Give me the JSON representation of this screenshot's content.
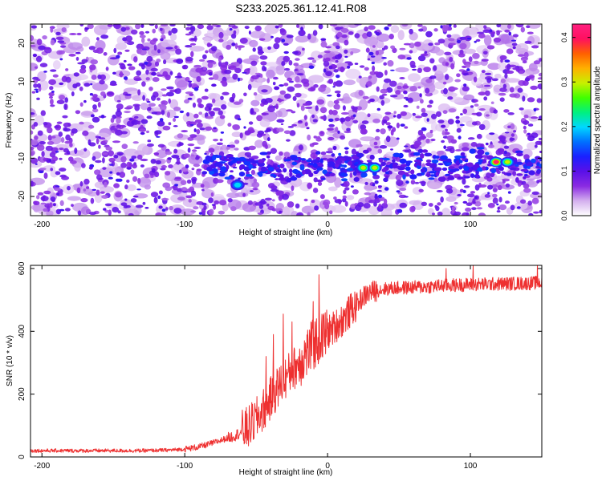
{
  "title": "S233.2025.361.12.41.R08",
  "chart_data": [
    {
      "type": "heatmap",
      "xlabel": "Height of straight line (km)",
      "ylabel": "Frequency (Hz)",
      "xlim": [
        -208,
        150
      ],
      "ylim": [
        -25,
        25
      ],
      "xticks": [
        -200,
        -100,
        0,
        100
      ],
      "yticks": [
        -20,
        -10,
        0,
        10,
        20
      ],
      "colorbar": {
        "label": "Normalized spectral amplitude",
        "range": [
          0,
          0.43
        ],
        "ticks": [
          0.0,
          0.1,
          0.2,
          0.3,
          0.4
        ],
        "tick_labels": [
          "0.0",
          "0.1",
          "0.2",
          "0.3",
          "0.4"
        ],
        "colors": [
          "#ffffff",
          "#d4b0ee",
          "#8a2be2",
          "#5a10e8",
          "#1a20ff",
          "#0070ff",
          "#00d8ff",
          "#00f080",
          "#40ff00",
          "#c8f000",
          "#ffb000",
          "#ff6000",
          "#ff1060",
          "#ff2080"
        ]
      },
      "band": {
        "description": "enhanced amplitude band near -12 Hz for heights above about -80 km",
        "frequency_hz": -12,
        "peaks": [
          {
            "x_km": -63,
            "y_hz": -17,
            "amp": 0.24
          },
          {
            "x_km": 25,
            "y_hz": -12.5,
            "amp": 0.33
          },
          {
            "x_km": 33,
            "y_hz": -12.5,
            "amp": 0.3
          },
          {
            "x_km": 118,
            "y_hz": -11,
            "amp": 0.42
          },
          {
            "x_km": 126,
            "y_hz": -11,
            "amp": 0.32
          }
        ]
      }
    },
    {
      "type": "line",
      "xlabel": "Height of straight line (km)",
      "ylabel": "SNR (10 * v/v)",
      "xlim": [
        -208,
        150
      ],
      "ylim": [
        0,
        610
      ],
      "xticks": [
        -200,
        -100,
        0,
        100
      ],
      "yticks": [
        0,
        200,
        400,
        600
      ],
      "color": "#ee3030",
      "series": [
        {
          "name": "SNR",
          "x": [
            -208,
            -190,
            -170,
            -150,
            -130,
            -110,
            -100,
            -90,
            -80,
            -70,
            -65,
            -60,
            -55,
            -50,
            -45,
            -40,
            -35,
            -30,
            -25,
            -20,
            -15,
            -10,
            -5,
            0,
            5,
            10,
            15,
            20,
            25,
            30,
            40,
            50,
            60,
            70,
            80,
            90,
            100,
            110,
            120,
            130,
            140,
            150
          ],
          "y": [
            20,
            20,
            20,
            20,
            20,
            22,
            25,
            32,
            45,
            60,
            68,
            80,
            95,
            120,
            150,
            185,
            220,
            250,
            275,
            300,
            330,
            355,
            380,
            395,
            415,
            435,
            460,
            485,
            510,
            525,
            535,
            538,
            540,
            542,
            545,
            547,
            549,
            550,
            551,
            552,
            553,
            555
          ]
        }
      ],
      "spikes": [
        {
          "x": -43,
          "y": 320
        },
        {
          "x": -38,
          "y": 390
        },
        {
          "x": -31,
          "y": 455
        },
        {
          "x": -25,
          "y": 430
        },
        {
          "x": -10,
          "y": 495
        },
        {
          "x": -6,
          "y": 580
        },
        {
          "x": 83,
          "y": 600
        },
        {
          "x": 102,
          "y": 610
        },
        {
          "x": 147,
          "y": 612
        }
      ]
    }
  ]
}
